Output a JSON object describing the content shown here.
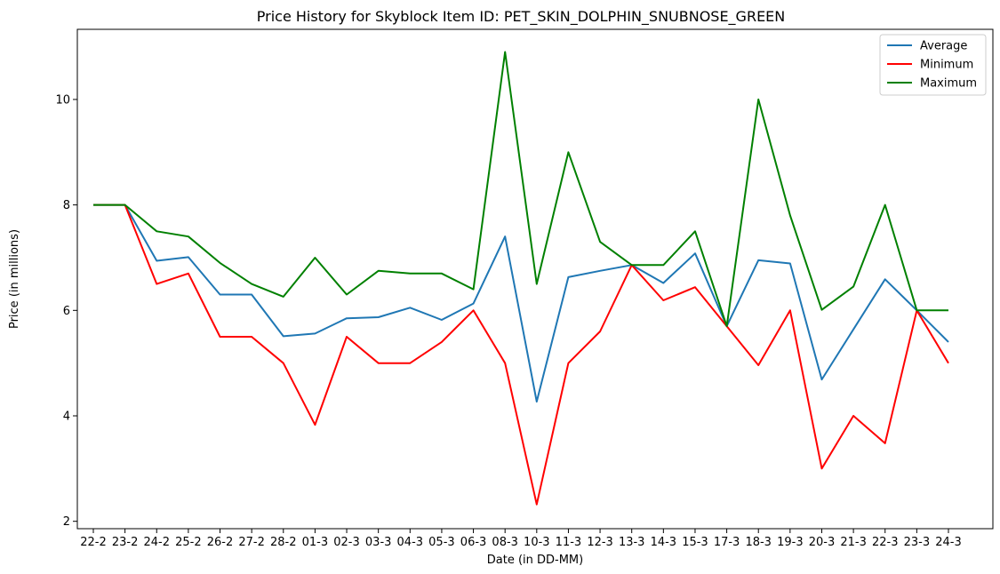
{
  "chart_data": {
    "type": "line",
    "title": "Price History for Skyblock Item ID: PET_SKIN_DOLPHIN_SNUBNOSE_GREEN",
    "xlabel": "Date (in DD-MM)",
    "ylabel": "Price (in millions)",
    "categories": [
      "22-2",
      "23-2",
      "24-2",
      "25-2",
      "26-2",
      "27-2",
      "28-2",
      "01-3",
      "02-3",
      "03-3",
      "04-3",
      "05-3",
      "06-3",
      "08-3",
      "10-3",
      "11-3",
      "12-3",
      "13-3",
      "14-3",
      "15-3",
      "17-3",
      "18-3",
      "19-3",
      "20-3",
      "21-3",
      "22-3",
      "23-3",
      "24-3"
    ],
    "y_ticks": [
      2,
      4,
      6,
      8,
      10
    ],
    "ylim": [
      1.86,
      11.33
    ],
    "legend_position": "top-right",
    "grid": false,
    "series": [
      {
        "name": "Average",
        "color": "#1f77b4",
        "values": [
          8.0,
          8.0,
          6.94,
          7.01,
          6.3,
          6.3,
          5.51,
          5.56,
          5.85,
          5.87,
          6.05,
          5.82,
          6.13,
          7.4,
          4.27,
          6.63,
          6.75,
          6.86,
          6.52,
          7.08,
          5.7,
          6.95,
          6.89,
          4.69,
          5.64,
          6.59,
          6.0,
          5.4
        ]
      },
      {
        "name": "Minimum",
        "color": "#ff0000",
        "values": [
          8.0,
          8.0,
          6.5,
          6.7,
          5.5,
          5.5,
          5.0,
          3.83,
          5.5,
          5.0,
          5.0,
          5.4,
          6.0,
          5.0,
          2.32,
          5.0,
          5.6,
          6.86,
          6.19,
          6.44,
          5.7,
          4.96,
          6.0,
          3.0,
          4.0,
          3.48,
          6.0,
          5.0
        ]
      },
      {
        "name": "Maximum",
        "color": "#008000",
        "values": [
          8.0,
          8.0,
          7.5,
          7.4,
          6.9,
          6.5,
          6.26,
          7.0,
          6.3,
          6.75,
          6.7,
          6.7,
          6.4,
          10.9,
          6.5,
          9.0,
          7.3,
          6.86,
          6.86,
          7.5,
          5.7,
          10.0,
          7.8,
          6.01,
          6.45,
          8.0,
          6.0,
          6.0
        ]
      }
    ]
  }
}
